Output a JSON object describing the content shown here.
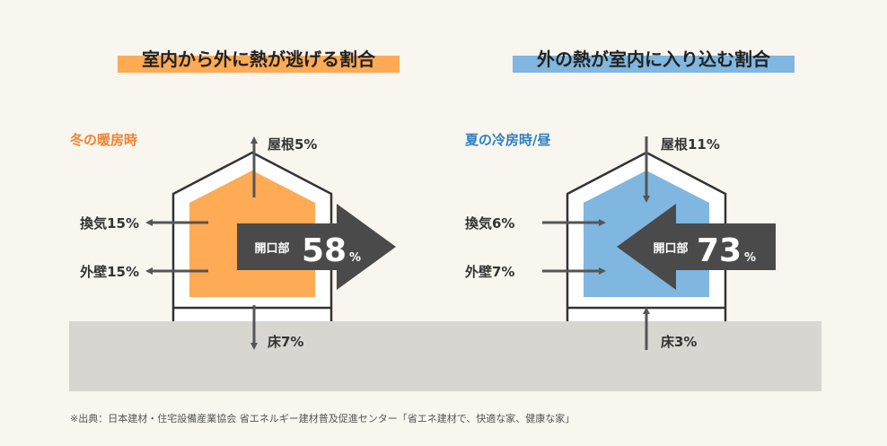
{
  "titles": {
    "left": "室内から外に熱が逃げる割合",
    "right": "外の熱が室内に入り込む割合"
  },
  "winter": {
    "season_label": "冬の暖房時",
    "roof": "屋根5%",
    "ventilation": "換気15%",
    "wall": "外壁15%",
    "floor": "床7%",
    "opening_label": "開口部",
    "opening_value": "58",
    "opening_unit": "%"
  },
  "summer": {
    "season_label": "夏の冷房時/昼",
    "roof": "屋根11%",
    "ventilation": "換気6%",
    "wall": "外壁7%",
    "floor": "床3%",
    "opening_label": "開口部",
    "opening_value": "73",
    "opening_unit": "%"
  },
  "source": "※出典：日本建材・住宅設備産業協会 省エネルギー建材普及促進センター「省エネ建材で、快適な家、健康な家」",
  "colors": {
    "background": "#f9f5ef",
    "ground": "#d9d5d0",
    "winter_accent": "#f08430",
    "winter_fill": "#ffaa55",
    "summer_accent": "#2e7fc0",
    "summer_fill": "#7fb7e0",
    "arrow": "#555555",
    "big_arrow": "#4a4a4a"
  }
}
